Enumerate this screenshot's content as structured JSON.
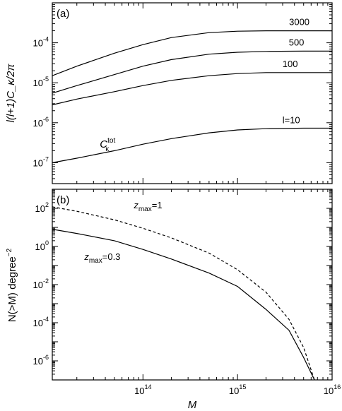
{
  "chart_data": [
    {
      "panel_label": "(a)",
      "type": "line",
      "ylabel": "l(l+1)C_κ/2π",
      "ylog": true,
      "ylim": [
        3e-08,
        0.001
      ],
      "xlog": true,
      "xlim": [
        11000000000000.0,
        1e+16
      ],
      "y_ticks": [
        {
          "base": "10",
          "exp": "-7",
          "value": 1e-07
        },
        {
          "base": "10",
          "exp": "-6",
          "value": 1e-06
        },
        {
          "base": "10",
          "exp": "-5",
          "value": 1e-05
        },
        {
          "base": "10",
          "exp": "-4",
          "value": 0.0001
        }
      ],
      "series": [
        {
          "name": "3000",
          "style": "solid",
          "x": [
            11000000000000.0,
            20000000000000.0,
            50000000000000.0,
            100000000000000.0,
            200000000000000.0,
            500000000000000.0,
            1000000000000000.0,
            2000000000000000.0,
            5000000000000000.0,
            1e+16
          ],
          "y": [
            1.5e-05,
            2.6e-05,
            5.5e-05,
            9e-05,
            0.000135,
            0.00018,
            0.000195,
            0.0002,
            0.0002,
            0.0002
          ]
        },
        {
          "name": "500",
          "style": "solid",
          "x": [
            11000000000000.0,
            20000000000000.0,
            50000000000000.0,
            100000000000000.0,
            200000000000000.0,
            500000000000000.0,
            1000000000000000.0,
            2000000000000000.0,
            5000000000000000.0,
            1e+16
          ],
          "y": [
            5.5e-06,
            8.5e-06,
            1.6e-05,
            2.6e-05,
            3.8e-05,
            5.2e-05,
            5.8e-05,
            6.1e-05,
            6.2e-05,
            6.2e-05
          ]
        },
        {
          "name": "100",
          "style": "solid",
          "x": [
            11000000000000.0,
            20000000000000.0,
            50000000000000.0,
            100000000000000.0,
            200000000000000.0,
            500000000000000.0,
            1000000000000000.0,
            2000000000000000.0,
            5000000000000000.0,
            1e+16
          ],
          "y": [
            2.8e-06,
            3.9e-06,
            6e-06,
            8.5e-06,
            1.15e-05,
            1.5e-05,
            1.7e-05,
            1.8e-05,
            1.8e-05,
            1.8e-05
          ]
        },
        {
          "name": "l=10",
          "style": "solid",
          "x": [
            11000000000000.0,
            20000000000000.0,
            50000000000000.0,
            100000000000000.0,
            200000000000000.0,
            500000000000000.0,
            1000000000000000.0,
            2000000000000000.0,
            5000000000000000.0,
            1e+16
          ],
          "y": [
            1e-07,
            1.3e-07,
            2e-07,
            2.9e-07,
            4e-07,
            5.6e-07,
            6.6e-07,
            7.1e-07,
            7.3e-07,
            7.3e-07
          ]
        }
      ],
      "annotations": [
        {
          "text_main": "C",
          "text_sub": "κ",
          "text_sup": "tot",
          "x": 35000000000000.0,
          "y": 2.4e-07
        }
      ]
    },
    {
      "panel_label": "(b)",
      "type": "line",
      "ylabel": "N(>M) degree",
      "ylabel_sup": "−2",
      "xlabel": "M",
      "ylog": true,
      "ylim": [
        1e-07,
        1000.0
      ],
      "xlog": true,
      "xlim": [
        11000000000000.0,
        1e+16
      ],
      "x_ticks": [
        {
          "base": "10",
          "exp": "14",
          "value": 100000000000000.0
        },
        {
          "base": "10",
          "exp": "15",
          "value": 1000000000000000.0
        },
        {
          "base": "10",
          "exp": "16",
          "value": 1e+16
        }
      ],
      "y_ticks": [
        {
          "base": "10",
          "exp": "-6",
          "value": 1e-06
        },
        {
          "base": "10",
          "exp": "-4",
          "value": 0.0001
        },
        {
          "base": "10",
          "exp": "-2",
          "value": 0.01
        },
        {
          "base": "10",
          "exp": "0",
          "value": 1.0
        },
        {
          "base": "10",
          "exp": "2",
          "value": 100.0
        }
      ],
      "series": [
        {
          "name": "z_max=1",
          "style": "dashed",
          "x": [
            11000000000000.0,
            20000000000000.0,
            50000000000000.0,
            100000000000000.0,
            200000000000000.0,
            500000000000000.0,
            1000000000000000.0,
            2000000000000000.0,
            3500000000000000.0,
            5000000000000000.0,
            6500000000000000.0
          ],
          "y": [
            120,
            70,
            25,
            9.0,
            2.8,
            0.45,
            0.06,
            0.004,
            0.00015,
            5e-06,
            1e-07
          ]
        },
        {
          "name": "z_max=0.3",
          "style": "solid",
          "x": [
            11000000000000.0,
            20000000000000.0,
            50000000000000.0,
            100000000000000.0,
            200000000000000.0,
            500000000000000.0,
            1000000000000000.0,
            2000000000000000.0,
            3500000000000000.0,
            5000000000000000.0,
            6500000000000000.0
          ],
          "y": [
            8.0,
            4.8,
            2.0,
            0.7,
            0.22,
            0.04,
            0.008,
            0.0005,
            4e-05,
            1.5e-06,
            1e-07
          ]
        }
      ],
      "annotations": [
        {
          "text_main": "z",
          "text_sub": "max",
          "text_rest": "=1",
          "x": 80000000000000.0,
          "y": 100
        },
        {
          "text_main": "z",
          "text_sub": "max",
          "text_rest": "=0.3",
          "x": 24000000000000.0,
          "y": 0.2
        }
      ]
    }
  ]
}
